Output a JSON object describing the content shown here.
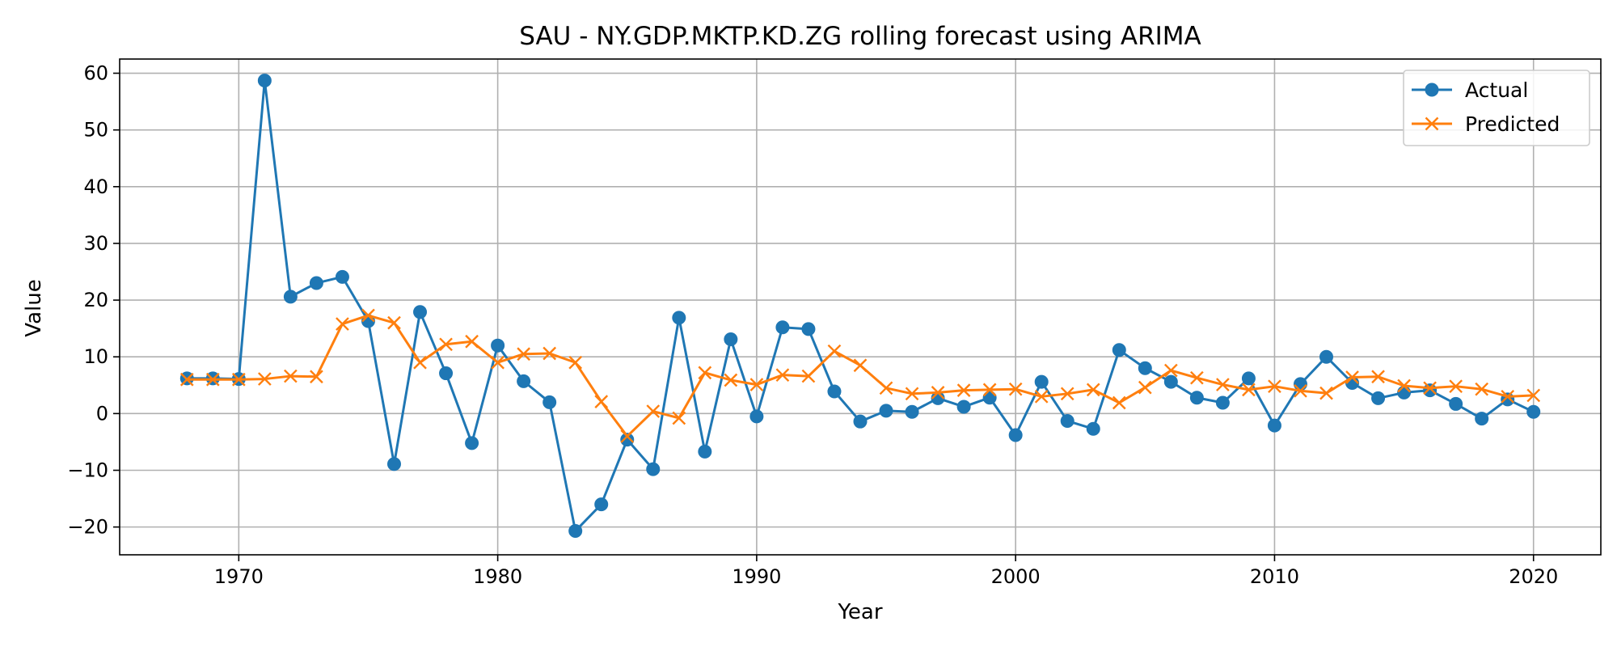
{
  "chart_data": {
    "type": "line",
    "title": "SAU - NY.GDP.MKTP.KD.ZG rolling forecast using ARIMA",
    "xlabel": "Year",
    "ylabel": "Value",
    "xlim": [
      1965.4,
      2022.6
    ],
    "ylim": [
      -24.9,
      62.5
    ],
    "x_ticks": [
      1970,
      1980,
      1990,
      2000,
      2010,
      2020
    ],
    "x_tick_labels": [
      "1970",
      "1980",
      "1990",
      "2000",
      "2010",
      "2020"
    ],
    "y_ticks": [
      -20,
      -10,
      0,
      10,
      20,
      30,
      40,
      50,
      60
    ],
    "y_tick_labels": [
      "−20",
      "−10",
      "0",
      "10",
      "20",
      "30",
      "40",
      "50",
      "60"
    ],
    "grid": true,
    "legend_position": "top-right",
    "x": [
      1968,
      1969,
      1970,
      1971,
      1972,
      1973,
      1974,
      1975,
      1976,
      1977,
      1978,
      1979,
      1980,
      1981,
      1982,
      1983,
      1984,
      1985,
      1986,
      1987,
      1988,
      1989,
      1990,
      1991,
      1992,
      1993,
      1994,
      1995,
      1996,
      1997,
      1998,
      1999,
      2000,
      2001,
      2002,
      2003,
      2004,
      2005,
      2006,
      2007,
      2008,
      2009,
      2010,
      2011,
      2012,
      2013,
      2014,
      2015,
      2016,
      2017,
      2018,
      2019,
      2020
    ],
    "series": [
      {
        "name": "Actual",
        "color": "#1f77b4",
        "marker": "circle",
        "values": [
          6.2,
          6.2,
          6.1,
          58.7,
          20.6,
          23.0,
          24.1,
          16.3,
          -8.9,
          17.9,
          7.1,
          -5.2,
          12.0,
          5.7,
          2.0,
          -20.7,
          -16.0,
          -4.6,
          -9.8,
          16.9,
          -6.7,
          13.1,
          -0.5,
          15.2,
          14.9,
          3.9,
          -1.4,
          0.5,
          0.3,
          2.7,
          1.2,
          2.8,
          -3.8,
          5.6,
          -1.3,
          -2.7,
          11.2,
          8.0,
          5.6,
          2.8,
          1.9,
          6.2,
          -2.1,
          5.2,
          10.0,
          5.4,
          2.7,
          3.7,
          4.1,
          1.7,
          -0.9,
          2.5,
          0.3
        ]
      },
      {
        "name": "Predicted",
        "color": "#ff7f0e",
        "marker": "x",
        "values": [
          6.0,
          6.0,
          6.0,
          6.1,
          6.6,
          6.5,
          15.8,
          17.3,
          16.0,
          9.0,
          12.2,
          12.7,
          9.0,
          10.5,
          10.6,
          9.0,
          2.1,
          -4.0,
          0.4,
          -0.8,
          7.2,
          5.9,
          5.1,
          6.8,
          6.6,
          11.0,
          8.5,
          4.5,
          3.5,
          3.7,
          4.1,
          4.2,
          4.3,
          3.0,
          3.5,
          4.2,
          1.9,
          4.6,
          7.6,
          6.3,
          5.1,
          4.2,
          4.8,
          4.0,
          3.6,
          6.4,
          6.5,
          4.9,
          4.5,
          4.8,
          4.3,
          3.0,
          3.2
        ]
      }
    ]
  }
}
